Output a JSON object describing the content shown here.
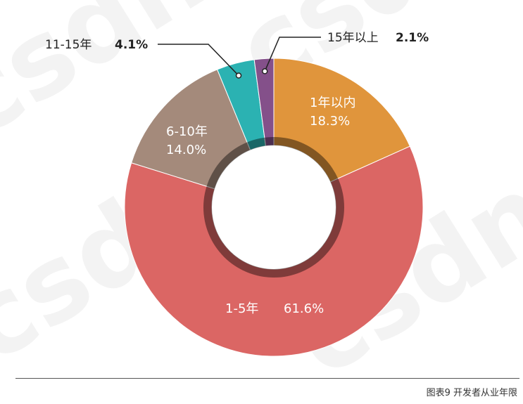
{
  "chart_data": {
    "type": "pie",
    "donut": true,
    "categories": [
      "1年以内",
      "1-5年",
      "6-10年",
      "11-15年",
      "15年以上"
    ],
    "values": [
      18.3,
      61.6,
      14.0,
      4.1,
      2.1
    ],
    "labels": [
      {
        "category": "1年以内",
        "value": "18.3%"
      },
      {
        "category": "1-5年",
        "value": "61.6%"
      },
      {
        "category": "6-10年",
        "value": "14.0%"
      },
      {
        "category": "11-15年",
        "value": "4.1%"
      },
      {
        "category": "15年以上",
        "value": "2.1%"
      }
    ],
    "colors": [
      "#E0953C",
      "#DB6664",
      "#A48A7B",
      "#2BB2B2",
      "#84508A"
    ],
    "legend": "none"
  },
  "caption": "图表9 开发者从业年限",
  "watermark": "csdn"
}
